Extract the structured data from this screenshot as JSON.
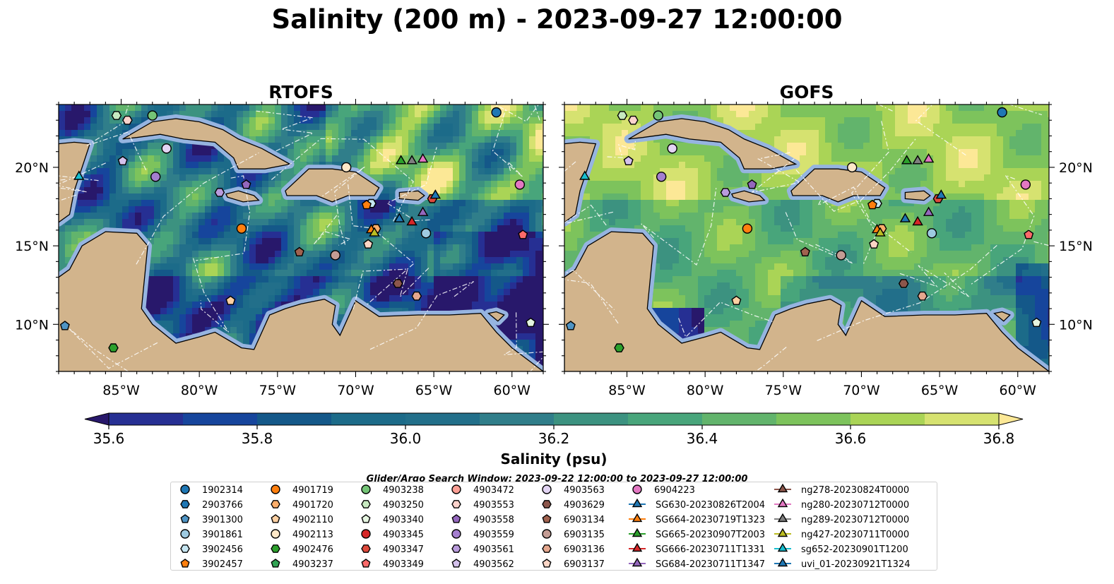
{
  "title": "Salinity (200 m) - 2023-09-27 12:00:00",
  "panels": [
    {
      "title": "RTOFS",
      "field": "rtofs"
    },
    {
      "title": "GOFS",
      "field": "gofs"
    }
  ],
  "map": {
    "lon_range": [
      -89,
      -58
    ],
    "lat_range": [
      7,
      24
    ],
    "lon_ticks": [
      -85,
      -80,
      -75,
      -70,
      -65,
      -60
    ],
    "lon_tick_labels": [
      "85°W",
      "80°W",
      "75°W",
      "70°W",
      "65°W",
      "60°W"
    ],
    "lat_ticks": [
      10,
      15,
      20
    ],
    "lat_tick_labels": [
      "10°N",
      "15°N",
      "20°N"
    ],
    "land_color": "#d2b48c",
    "shelf_color": "#96b4e0"
  },
  "colorbar": {
    "label": "Salinity (psu)",
    "min": 35.5,
    "max": 36.9,
    "step": 0.1,
    "tick_values": [
      35.6,
      35.8,
      36.0,
      36.2,
      36.4,
      36.6,
      36.8
    ],
    "tick_labels": [
      "35.6",
      "35.8",
      "36.0",
      "36.2",
      "36.4",
      "36.6",
      "36.8"
    ],
    "colors": [
      "#28186b",
      "#262f93",
      "#16459c",
      "#145889",
      "#1c6b89",
      "#226f8a",
      "#307e8a",
      "#3c9280",
      "#48a57b",
      "#62b46c",
      "#7dc35c",
      "#aad456",
      "#d6e270",
      "#fce896"
    ]
  },
  "search_window": "Glider/Argo Search Window: 2023-09-22 12:00:00 to 2023-09-27 12:00:00",
  "legend": {
    "entries": [
      {
        "label": "1902314",
        "marker": "circle",
        "color": "#1f77b4",
        "lon": -61.0,
        "lat": 23.5
      },
      {
        "label": "2903766",
        "marker": "hexagon",
        "color": "#1f77b4"
      },
      {
        "label": "3901300",
        "marker": "pentagon",
        "color": "#4f94c4",
        "lon": -88.6,
        "lat": 9.9
      },
      {
        "label": "3901861",
        "marker": "circle",
        "color": "#9ecae1",
        "lon": -65.5,
        "lat": 15.8
      },
      {
        "label": "3902456",
        "marker": "hexagon",
        "color": "#c6e6f2",
        "lon": -69.0,
        "lat": 17.7
      },
      {
        "label": "3902457",
        "marker": "pentagon",
        "color": "#ff7f0e",
        "lon": -69.3,
        "lat": 17.6
      },
      {
        "label": "4901719",
        "marker": "circle",
        "color": "#ff7f0e",
        "lon": -77.3,
        "lat": 16.1
      },
      {
        "label": "4901720",
        "marker": "hexagon",
        "color": "#fdae6b",
        "lon": -68.7,
        "lat": 16.1
      },
      {
        "label": "4902110",
        "marker": "pentagon",
        "color": "#fdd0a2",
        "lon": -78.0,
        "lat": 11.5
      },
      {
        "label": "4902113",
        "marker": "circle",
        "color": "#fee8c8",
        "lon": -70.6,
        "lat": 20.0
      },
      {
        "label": "4902476",
        "marker": "hexagon",
        "color": "#2ca02c",
        "lon": -85.5,
        "lat": 8.5
      },
      {
        "label": "4903237",
        "marker": "pentagon",
        "color": "#31a354"
      },
      {
        "label": "4903238",
        "marker": "circle",
        "color": "#74c476",
        "lon": -83.0,
        "lat": 23.3
      },
      {
        "label": "4903250",
        "marker": "hexagon",
        "color": "#c7e9c0",
        "lon": -85.3,
        "lat": 23.3
      },
      {
        "label": "4903340",
        "marker": "pentagon",
        "color": "#e5f5e0",
        "lon": -58.8,
        "lat": 10.1
      },
      {
        "label": "4903345",
        "marker": "circle",
        "color": "#d62728"
      },
      {
        "label": "4903347",
        "marker": "hexagon",
        "color": "#de4a3c",
        "lon": -65.1,
        "lat": 18.0
      },
      {
        "label": "4903349",
        "marker": "pentagon",
        "color": "#fb6a6a",
        "lon": -59.3,
        "lat": 15.7
      },
      {
        "label": "4903472",
        "marker": "circle",
        "color": "#fc9f95"
      },
      {
        "label": "4903553",
        "marker": "hexagon",
        "color": "#fcd3cc",
        "lon": -84.6,
        "lat": 23.0
      },
      {
        "label": "4903558",
        "marker": "pentagon",
        "color": "#9467bd",
        "lon": -77.0,
        "lat": 18.9
      },
      {
        "label": "4903559",
        "marker": "circle",
        "color": "#a47ecf",
        "lon": -82.8,
        "lat": 19.4
      },
      {
        "label": "4903561",
        "marker": "hexagon",
        "color": "#b99bdc",
        "lon": -78.7,
        "lat": 18.4
      },
      {
        "label": "4903562",
        "marker": "pentagon",
        "color": "#d4c1ec",
        "lon": -84.9,
        "lat": 20.4
      },
      {
        "label": "4903563",
        "marker": "circle",
        "color": "#e2d4f3",
        "lon": -82.1,
        "lat": 21.2
      },
      {
        "label": "4903629",
        "marker": "hexagon",
        "color": "#8c564b",
        "lon": -67.3,
        "lat": 12.6
      },
      {
        "label": "6903134",
        "marker": "pentagon",
        "color": "#a0624f",
        "lon": -73.6,
        "lat": 14.6
      },
      {
        "label": "6903135",
        "marker": "circle",
        "color": "#c49c94",
        "lon": -71.3,
        "lat": 14.4
      },
      {
        "label": "6903136",
        "marker": "hexagon",
        "color": "#e5a78e",
        "lon": -66.1,
        "lat": 11.8
      },
      {
        "label": "6903137",
        "marker": "pentagon",
        "color": "#fbd5c5",
        "lon": -69.2,
        "lat": 15.1
      },
      {
        "label": "6904223",
        "marker": "circle",
        "color": "#e377c2",
        "lon": -59.5,
        "lat": 18.9
      },
      {
        "label": "SG630-20230826T2004",
        "marker": "triangle",
        "line": true,
        "color": "#1f77b4",
        "lon": -67.2,
        "lat": 16.7
      },
      {
        "label": "SG664-20230719T1323",
        "marker": "triangle",
        "line": true,
        "color": "#ff7f0e",
        "lon": -69.0,
        "lat": 16.0
      },
      {
        "label": "SG665-20230907T2003",
        "marker": "triangle",
        "line": true,
        "color": "#2ca02c",
        "lon": -67.1,
        "lat": 20.4
      },
      {
        "label": "SG666-20230711T1331",
        "marker": "triangle",
        "line": true,
        "color": "#d62728",
        "lon": -66.4,
        "lat": 16.5
      },
      {
        "label": "SG684-20230711T1347",
        "marker": "triangle",
        "line": true,
        "color": "#9467bd",
        "lon": -65.7,
        "lat": 17.1
      },
      {
        "label": "ng278-20230824T0000",
        "marker": "triangle",
        "line": true,
        "color": "#8c564b"
      },
      {
        "label": "ng280-20230712T0000",
        "marker": "triangle",
        "line": true,
        "color": "#e377c2",
        "lon": -65.7,
        "lat": 20.5
      },
      {
        "label": "ng289-20230712T0000",
        "marker": "triangle",
        "line": true,
        "color": "#7f7f7f",
        "lon": -66.4,
        "lat": 20.4
      },
      {
        "label": "ng427-20230711T0000",
        "marker": "triangle",
        "line": true,
        "color": "#bcbd22",
        "lon": -68.8,
        "lat": 15.8
      },
      {
        "label": "sg652-20230901T1200",
        "marker": "triangle",
        "line": true,
        "color": "#17becf",
        "lon": -87.7,
        "lat": 19.4
      },
      {
        "label": "uvi_01-20230921T1324",
        "marker": "triangle",
        "line": true,
        "color": "#1f77b4",
        "lon": -64.9,
        "lat": 18.2
      }
    ]
  }
}
